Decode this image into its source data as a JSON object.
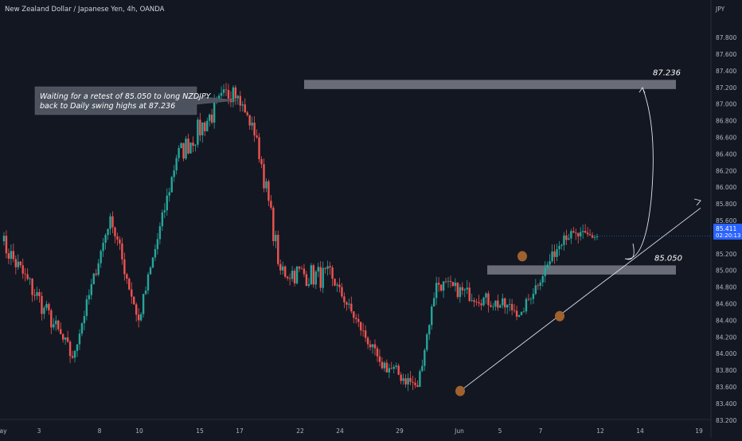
{
  "header": {
    "title": "New Zealand Dollar / Japanese Yen, 4h, OANDA",
    "currency": "JPY"
  },
  "price_tag": {
    "price": "85.411",
    "countdown": "02:20:13",
    "color": "#2962ff"
  },
  "callout": {
    "line1": "Waiting for a retest of 85.050 to long NZDJPY",
    "line2": "back to Daily swing highs at 87.236"
  },
  "colors": {
    "bull": "#26a69a",
    "bear": "#ef5350",
    "zone": "#b2b5be",
    "marker": "#a0622d"
  },
  "chart_data": {
    "type": "candlestick",
    "ylim": [
      83.1,
      88.05
    ],
    "y_ticks": [
      "87.800",
      "87.600",
      "87.400",
      "87.200",
      "87.000",
      "86.800",
      "86.600",
      "86.400",
      "86.200",
      "86.000",
      "85.800",
      "85.600",
      "85.400",
      "85.200",
      "85.000",
      "84.800",
      "84.600",
      "84.400",
      "84.200",
      "84.000",
      "83.800",
      "83.600",
      "83.400",
      "83.200"
    ],
    "x_ticks": [
      "ay",
      "3",
      "8",
      "10",
      "15",
      "17",
      "22",
      "24",
      "29",
      "Jun",
      "5",
      "7",
      "12",
      "14",
      "19"
    ],
    "zones": [
      {
        "label": "87.236",
        "low": 87.18,
        "high": 87.29
      },
      {
        "label": "85.050",
        "low": 84.95,
        "high": 85.06
      }
    ],
    "trendline": {
      "from_price": 83.55,
      "to_price": 85.75
    },
    "projection_target": 87.236,
    "last_price": 85.411,
    "anchors": [
      {
        "price": 85.35,
        "high": 87.28,
        "low": 85.22
      },
      {
        "price": 84.55,
        "high": 85.98,
        "low": 84.2
      },
      {
        "price": 83.95,
        "high": 84.6,
        "low": 83.45
      },
      {
        "price": 85.65,
        "high": 85.9,
        "low": 84.25
      },
      {
        "price": 84.4,
        "high": 85.3,
        "low": 83.9
      },
      {
        "price": 86.35,
        "high": 86.55,
        "low": 84.3
      },
      {
        "price": 87.2,
        "high": 87.33,
        "low": 86.2
      },
      {
        "price": 86.6,
        "high": 87.1,
        "low": 85.0
      },
      {
        "price": 85.0,
        "high": 86.65,
        "low": 84.4
      },
      {
        "price": 84.9,
        "high": 85.15,
        "low": 84.35
      },
      {
        "price": 83.9,
        "high": 85.1,
        "low": 83.6
      },
      {
        "price": 83.6,
        "high": 84.4,
        "low": 83.5
      },
      {
        "price": 84.85,
        "high": 85.05,
        "low": 83.7
      },
      {
        "price": 84.5,
        "high": 85.08,
        "low": 84.35
      },
      {
        "price": 85.42,
        "high": 85.55,
        "low": 84.7
      },
      {
        "price": 85.411,
        "high": 85.5,
        "low": 85.3
      }
    ]
  }
}
